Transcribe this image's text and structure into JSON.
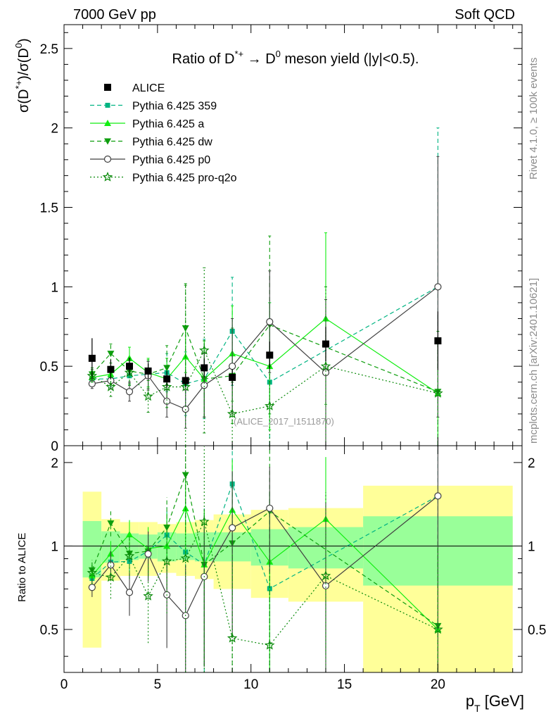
{
  "header": {
    "left": "7000 GeV pp",
    "right": "Soft QCD"
  },
  "side_labels": {
    "rivet": "Rivet 4.1.0, ≥ 100k events",
    "mcplots": "mcplots.cern.ch [arXiv:2401.10621]"
  },
  "chart_data": {
    "type": "scatter",
    "title": "Ratio of D*+ → D0 meson yield (|y|<0.5).",
    "title_parts": [
      "Ratio of D",
      "*+",
      " → D",
      "0",
      " meson yield (|y|<0.5)."
    ],
    "ylabel_parts": [
      "σ(D",
      "*+",
      ")/σ(D",
      "0",
      ")"
    ],
    "xlabel_parts": [
      "p",
      "T",
      " [GeV]"
    ],
    "ratio_ylabel": "Ratio to ALICE",
    "watermark": "(ALICE_2017_I1511870)",
    "xlim": [
      0,
      24.5
    ],
    "ylim": [
      0,
      2.65
    ],
    "ratio_ylim": [
      0.35,
      2.3
    ],
    "x_ticks": [
      "0",
      "5",
      "10",
      "15",
      "20"
    ],
    "y_ticks": [
      "0",
      "0.5",
      "1",
      "1.5",
      "2",
      "2.5"
    ],
    "ratio_y_ticks": [
      "0.5",
      "1",
      "2"
    ],
    "legend": [
      "ALICE",
      "Pythia 6.425 359",
      "Pythia 6.425 a",
      "Pythia 6.425 dw",
      "Pythia 6.425 p0",
      "Pythia 6.425 pro-q2o"
    ],
    "bins": [
      [
        1,
        2
      ],
      [
        2,
        3
      ],
      [
        3,
        4
      ],
      [
        4,
        5
      ],
      [
        5,
        6
      ],
      [
        6,
        7
      ],
      [
        7,
        8
      ],
      [
        8,
        10
      ],
      [
        10,
        12
      ],
      [
        12,
        16
      ],
      [
        16,
        24
      ]
    ],
    "data": {
      "name": "ALICE",
      "x": [
        1.5,
        2.5,
        3.5,
        4.5,
        5.5,
        6.5,
        7.5,
        9,
        11,
        14,
        20
      ],
      "y": [
        0.55,
        0.48,
        0.5,
        0.47,
        0.42,
        0.41,
        0.49,
        0.43,
        0.57,
        0.64,
        0.66
      ],
      "stat_rel": [
        0.23,
        0.13,
        0.11,
        0.1,
        0.12,
        0.11,
        0.12,
        0.12,
        0.15,
        0.17,
        0.28
      ],
      "tot_rel": [
        0.57,
        0.25,
        0.22,
        0.22,
        0.2,
        0.22,
        0.24,
        0.3,
        0.35,
        0.37,
        0.65
      ]
    },
    "series": [
      {
        "name": "Pythia 6.425 359",
        "color": "#00b482",
        "dash": "6,4",
        "marker": "square",
        "x": [
          1.5,
          2.5,
          3.5,
          4.5,
          5.5,
          6.5,
          7.5,
          9,
          11,
          20
        ],
        "y": [
          0.42,
          0.42,
          0.44,
          0.45,
          0.46,
          0.39,
          0.42,
          0.72,
          0.4,
          1.0
        ],
        "err": [
          0.04,
          0.05,
          0.06,
          0.08,
          0.12,
          0.2,
          0.25,
          0.34,
          0.5,
          1.0
        ]
      },
      {
        "name": "Pythia 6.425 a",
        "color": "#11ee11",
        "dash": "",
        "marker": "triangle-up",
        "x": [
          1.5,
          2.5,
          3.5,
          4.5,
          5.5,
          6.5,
          7.5,
          9,
          11,
          14,
          20
        ],
        "y": [
          0.43,
          0.45,
          0.55,
          0.46,
          0.42,
          0.56,
          0.42,
          0.58,
          0.5,
          0.8,
          0.33
        ],
        "err": [
          0.04,
          0.05,
          0.07,
          0.09,
          0.13,
          0.18,
          0.24,
          0.3,
          0.4,
          0.54,
          0.33
        ]
      },
      {
        "name": "Pythia 6.425 dw",
        "color": "#0e9e0e",
        "dash": "6,4",
        "marker": "triangle-down",
        "x": [
          1.5,
          2.5,
          3.5,
          4.5,
          5.5,
          6.5,
          7.5,
          9,
          11,
          20
        ],
        "y": [
          0.45,
          0.58,
          0.47,
          0.45,
          0.49,
          0.74,
          0.42,
          0.44,
          0.76,
          0.34
        ],
        "err": [
          0.04,
          0.06,
          0.08,
          0.09,
          0.14,
          0.28,
          0.24,
          0.3,
          0.56,
          0.38
        ]
      },
      {
        "name": "Pythia 6.425 p0",
        "color": "#404040",
        "dash": "",
        "marker": "open-circle",
        "x": [
          1.5,
          2.5,
          3.5,
          4.5,
          5.5,
          6.5,
          7.5,
          9,
          11,
          14,
          20
        ],
        "y": [
          0.39,
          0.41,
          0.34,
          0.44,
          0.28,
          0.23,
          0.38,
          0.5,
          0.78,
          0.46,
          1.0
        ],
        "err": [
          0.03,
          0.05,
          0.06,
          0.09,
          0.1,
          0.12,
          0.2,
          0.3,
          0.32,
          0.46,
          0.82
        ]
      },
      {
        "name": "Pythia 6.425 pro-q2o",
        "color": "#0a8a0a",
        "dash": "2,3",
        "marker": "star",
        "x": [
          1.5,
          2.5,
          3.5,
          4.5,
          5.5,
          6.5,
          7.5,
          9,
          11,
          14,
          20
        ],
        "y": [
          0.44,
          0.37,
          0.46,
          0.31,
          0.37,
          0.37,
          0.6,
          0.2,
          0.25,
          0.5,
          0.33
        ],
        "err": [
          0.04,
          0.06,
          0.08,
          0.1,
          0.13,
          0.64,
          0.52,
          0.2,
          0.25,
          0.5,
          0.33
        ]
      }
    ]
  }
}
